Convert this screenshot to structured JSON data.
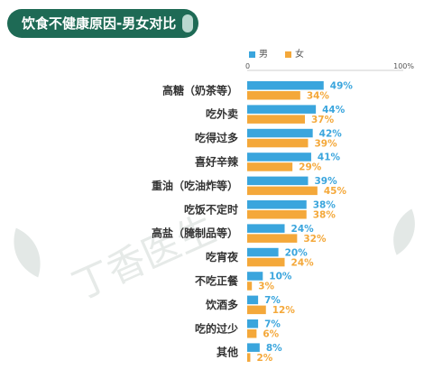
{
  "title": "饮食不健康原因-男女对比",
  "colors": {
    "male": "#3aa5dd",
    "female": "#f4a83a",
    "title_bg": "#1e6a55"
  },
  "watermark": "丁香医生",
  "chart_data": {
    "type": "bar",
    "orientation": "horizontal",
    "title": "饮食不健康原因-男女对比",
    "axis_ticks": [
      "0",
      "100%"
    ],
    "xlim": [
      0,
      100
    ],
    "legend_position": "top",
    "categories": [
      "高糖（奶茶等）",
      "吃外卖",
      "吃得过多",
      "喜好辛辣",
      "重油（吃油炸等）",
      "吃饭不定时",
      "高盐（腌制品等）",
      "吃宵夜",
      "不吃正餐",
      "饮酒多",
      "吃的过少",
      "其他"
    ],
    "series": [
      {
        "name": "男",
        "color": "#3aa5dd",
        "values": [
          49,
          44,
          42,
          41,
          39,
          38,
          24,
          20,
          10,
          7,
          7,
          8
        ]
      },
      {
        "name": "女",
        "color": "#f4a83a",
        "values": [
          34,
          37,
          39,
          29,
          45,
          38,
          32,
          24,
          3,
          12,
          6,
          2
        ]
      }
    ]
  }
}
